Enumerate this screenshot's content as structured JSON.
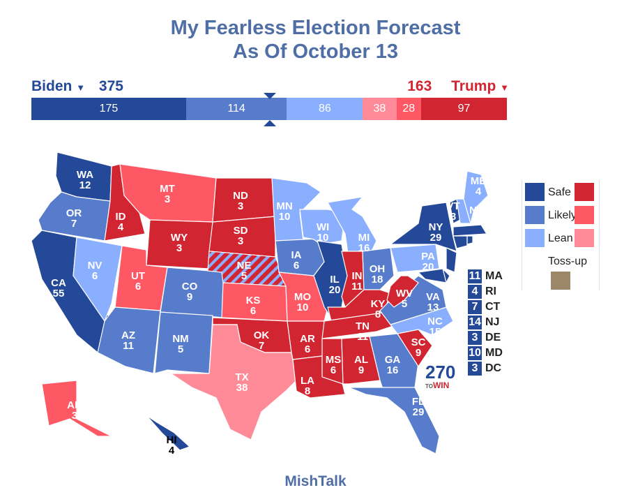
{
  "title": {
    "line1": "My Fearless Election Forecast",
    "line2": "As Of October 13"
  },
  "candidates": {
    "left": {
      "name": "Biden",
      "total": "375",
      "color": "#244999"
    },
    "right": {
      "name": "Trump",
      "total": "163",
      "color": "#d22532"
    }
  },
  "colors": {
    "safe_d": "#244999",
    "likely_d": "#587ccc",
    "lean_d": "#8aafff",
    "lean_r": "#ff8b98",
    "likely_r": "#ff5865",
    "safe_r": "#d22532",
    "tossup": "#9c8768"
  },
  "bar": [
    {
      "rating": "safe_d",
      "value": 175
    },
    {
      "rating": "likely_d",
      "value": 114
    },
    {
      "rating": "lean_d",
      "value": 86
    },
    {
      "rating": "lean_r",
      "value": 38
    },
    {
      "rating": "likely_r",
      "value": 28
    },
    {
      "rating": "safe_r",
      "value": 97
    }
  ],
  "bar_total": 538,
  "threshold": 270,
  "states": [
    {
      "abbr": "WA",
      "ev": 12,
      "rating": "safe_d"
    },
    {
      "abbr": "OR",
      "ev": 7,
      "rating": "likely_d"
    },
    {
      "abbr": "CA",
      "ev": 55,
      "rating": "safe_d"
    },
    {
      "abbr": "NV",
      "ev": 6,
      "rating": "lean_d"
    },
    {
      "abbr": "ID",
      "ev": 4,
      "rating": "safe_r"
    },
    {
      "abbr": "MT",
      "ev": 3,
      "rating": "likely_r"
    },
    {
      "abbr": "WY",
      "ev": 3,
      "rating": "safe_r"
    },
    {
      "abbr": "UT",
      "ev": 6,
      "rating": "likely_r"
    },
    {
      "abbr": "AZ",
      "ev": 11,
      "rating": "likely_d"
    },
    {
      "abbr": "CO",
      "ev": 9,
      "rating": "likely_d"
    },
    {
      "abbr": "NM",
      "ev": 5,
      "rating": "likely_d"
    },
    {
      "abbr": "ND",
      "ev": 3,
      "rating": "safe_r"
    },
    {
      "abbr": "SD",
      "ev": 3,
      "rating": "safe_r"
    },
    {
      "abbr": "NE",
      "ev": 5,
      "rating": "safe_r"
    },
    {
      "abbr": "KS",
      "ev": 6,
      "rating": "likely_r"
    },
    {
      "abbr": "OK",
      "ev": 7,
      "rating": "safe_r"
    },
    {
      "abbr": "TX",
      "ev": 38,
      "rating": "lean_r"
    },
    {
      "abbr": "MN",
      "ev": 10,
      "rating": "lean_d"
    },
    {
      "abbr": "IA",
      "ev": 6,
      "rating": "likely_d"
    },
    {
      "abbr": "MO",
      "ev": 10,
      "rating": "likely_r"
    },
    {
      "abbr": "AR",
      "ev": 6,
      "rating": "safe_r"
    },
    {
      "abbr": "LA",
      "ev": 8,
      "rating": "safe_r"
    },
    {
      "abbr": "WI",
      "ev": 10,
      "rating": "lean_d"
    },
    {
      "abbr": "MI",
      "ev": 16,
      "rating": "lean_d"
    },
    {
      "abbr": "IL",
      "ev": 20,
      "rating": "safe_d"
    },
    {
      "abbr": "IN",
      "ev": 11,
      "rating": "safe_r"
    },
    {
      "abbr": "OH",
      "ev": 18,
      "rating": "likely_d"
    },
    {
      "abbr": "KY",
      "ev": 8,
      "rating": "safe_r"
    },
    {
      "abbr": "TN",
      "ev": 11,
      "rating": "safe_r"
    },
    {
      "abbr": "MS",
      "ev": 6,
      "rating": "safe_r"
    },
    {
      "abbr": "AL",
      "ev": 9,
      "rating": "safe_r"
    },
    {
      "abbr": "GA",
      "ev": 16,
      "rating": "likely_d"
    },
    {
      "abbr": "FL",
      "ev": 29,
      "rating": "likely_d"
    },
    {
      "abbr": "SC",
      "ev": 9,
      "rating": "safe_r"
    },
    {
      "abbr": "NC",
      "ev": 15,
      "rating": "lean_d"
    },
    {
      "abbr": "VA",
      "ev": 13,
      "rating": "likely_d"
    },
    {
      "abbr": "WV",
      "ev": 5,
      "rating": "safe_r"
    },
    {
      "abbr": "PA",
      "ev": 20,
      "rating": "lean_d"
    },
    {
      "abbr": "NY",
      "ev": 29,
      "rating": "safe_d"
    },
    {
      "abbr": "VT",
      "ev": 3,
      "rating": "safe_d"
    },
    {
      "abbr": "NH",
      "ev": 4,
      "rating": "lean_d"
    },
    {
      "abbr": "ME",
      "ev": 4,
      "rating": "lean_d"
    },
    {
      "abbr": "MA",
      "ev": 11,
      "rating": "safe_d"
    },
    {
      "abbr": "CT",
      "ev": 7,
      "rating": "safe_d"
    },
    {
      "abbr": "RI",
      "ev": 4,
      "rating": "safe_d"
    },
    {
      "abbr": "NJ",
      "ev": 14,
      "rating": "safe_d"
    },
    {
      "abbr": "DE",
      "ev": 3,
      "rating": "safe_d"
    },
    {
      "abbr": "MD",
      "ev": 10,
      "rating": "safe_d"
    },
    {
      "abbr": "AK",
      "ev": 3,
      "rating": "likely_r"
    },
    {
      "abbr": "HI",
      "ev": 4,
      "rating": "safe_d"
    }
  ],
  "small_states": [
    {
      "ev": "11",
      "abbr": "MA"
    },
    {
      "ev": "4",
      "abbr": "RI"
    },
    {
      "ev": "7",
      "abbr": "CT"
    },
    {
      "ev": "14",
      "abbr": "NJ"
    },
    {
      "ev": "3",
      "abbr": "DE"
    },
    {
      "ev": "10",
      "abbr": "MD"
    },
    {
      "ev": "3",
      "abbr": "DC"
    }
  ],
  "legend": {
    "safe": "Safe",
    "likely": "Likely",
    "lean": "Lean",
    "tossup": "Toss-up"
  },
  "logo": {
    "number": "270",
    "to": "TO",
    "win": "WIN"
  },
  "footer": "MishTalk"
}
